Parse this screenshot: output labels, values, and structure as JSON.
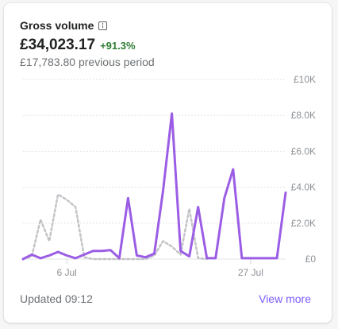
{
  "card": {
    "title": "Gross volume",
    "info_icon": "info-icon",
    "value": "£34,023.17",
    "change": "+91.3%",
    "previous": "£17,783.80 previous period",
    "updated": "Updated 09:12",
    "view_more": "View more"
  },
  "colors": {
    "current": "#9b5de5",
    "previous": "#c4c4c8",
    "change_positive": "#2e7d32",
    "link": "#7c5cff"
  },
  "chart_data": {
    "type": "line",
    "ylim": [
      0,
      10000
    ],
    "y_ticks": [
      {
        "value": 0,
        "label": "£0"
      },
      {
        "value": 2000,
        "label": "£2.0K"
      },
      {
        "value": 4000,
        "label": "£4.0K"
      },
      {
        "value": 6000,
        "label": "£6.0K"
      },
      {
        "value": 8000,
        "label": "£8.0K"
      },
      {
        "value": 10000,
        "label": "£10K"
      }
    ],
    "x_domain": [
      1,
      31
    ],
    "x_ticks": [
      {
        "value": 6,
        "label": "6 Jul"
      },
      {
        "value": 27,
        "label": "27 Jul"
      }
    ],
    "grid": true,
    "series": [
      {
        "style": "solid",
        "x": [
          1,
          2,
          3,
          4,
          5,
          6,
          7,
          8,
          9,
          10,
          11,
          12,
          13,
          14,
          15,
          16,
          17,
          18,
          19,
          20,
          21,
          22,
          23,
          24,
          25,
          26,
          27,
          28,
          29,
          30,
          31
        ],
        "values": [
          0,
          250,
          50,
          200,
          400,
          200,
          50,
          250,
          450,
          450,
          500,
          50,
          3400,
          200,
          100,
          300,
          3800,
          8100,
          450,
          150,
          2900,
          50,
          50,
          3400,
          5000,
          50,
          50,
          50,
          50,
          50,
          3700
        ]
      },
      {
        "style": "dashed",
        "x": [
          1,
          2,
          3,
          4,
          5,
          6,
          7,
          8,
          9,
          10,
          11,
          12,
          13,
          14,
          15,
          16,
          17,
          18,
          19,
          20,
          21,
          22
        ],
        "values": [
          0,
          150,
          2200,
          1000,
          3600,
          3300,
          2900,
          100,
          0,
          0,
          0,
          0,
          0,
          0,
          0,
          200,
          1000,
          700,
          250,
          2800,
          50,
          0
        ]
      }
    ]
  }
}
